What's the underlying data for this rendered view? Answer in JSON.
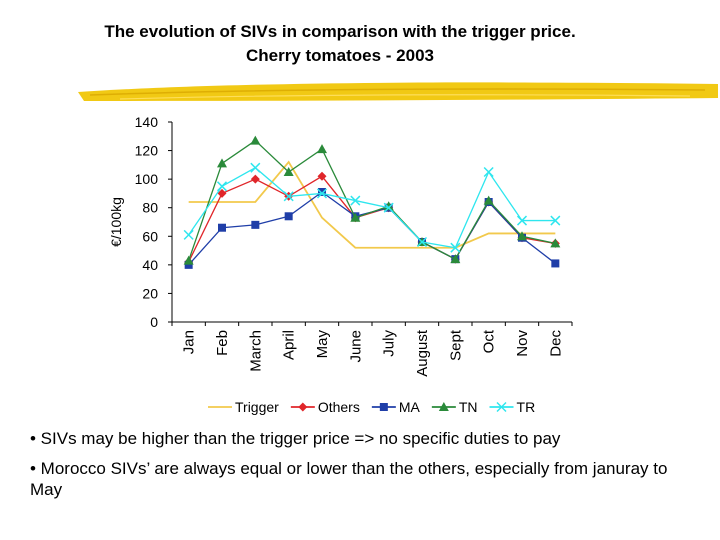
{
  "header": {
    "title_line1": "The evolution of SIVs in comparison with the trigger price.",
    "title_line2": "Cherry tomatoes - 2003"
  },
  "notes": [
    "• SIVs may be higher than the trigger price => no specific duties to pay",
    "• Morocco SIVs’ are always equal or lower than the others, especially from januray to May"
  ],
  "colors": {
    "brush": "#f0c400"
  },
  "chart_data": {
    "type": "line",
    "title": "",
    "xlabel": "",
    "ylabel": "€/100kg",
    "ylim": [
      0,
      140
    ],
    "yticks": [
      0,
      20,
      40,
      60,
      80,
      100,
      120,
      140
    ],
    "grid": false,
    "legend_position": "bottom",
    "categories": [
      "Jan",
      "Feb",
      "March",
      "April",
      "May",
      "June",
      "July",
      "August",
      "Sept",
      "Oct",
      "Nov",
      "Dec"
    ],
    "series": [
      {
        "name": "Trigger",
        "color": "#f2c94c",
        "marker": "none",
        "values": [
          84,
          84,
          84,
          112,
          73,
          52,
          52,
          52,
          52,
          62,
          62,
          62
        ]
      },
      {
        "name": "Others",
        "color": "#e0262a",
        "marker": "diamond",
        "values": [
          42,
          90,
          100,
          88,
          102,
          73,
          80,
          56,
          44,
          84,
          59,
          55
        ]
      },
      {
        "name": "MA",
        "color": "#1f3ea8",
        "marker": "square",
        "values": [
          40,
          66,
          68,
          74,
          91,
          74,
          80,
          56,
          44,
          84,
          59,
          41
        ]
      },
      {
        "name": "TN",
        "color": "#2a8a3a",
        "marker": "triangle",
        "values": [
          43,
          111,
          127,
          105,
          121,
          73,
          81,
          56,
          44,
          85,
          60,
          55
        ]
      },
      {
        "name": "TR",
        "color": "#2ee6ee",
        "marker": "x",
        "values": [
          61,
          95,
          108,
          88,
          90,
          85,
          80,
          56,
          52,
          105,
          71,
          71
        ]
      }
    ]
  }
}
